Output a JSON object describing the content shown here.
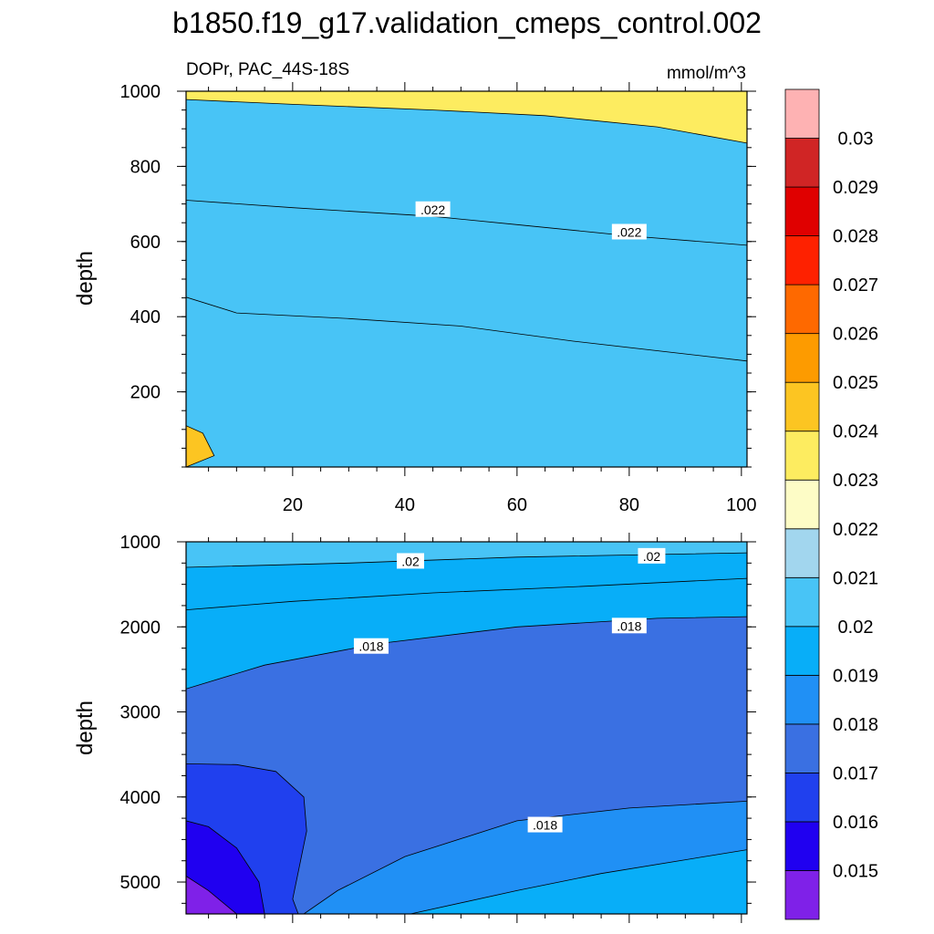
{
  "title": "b1850.f19_g17.validation_cmeps_control.002",
  "chart_data": [
    {
      "type": "contour",
      "panel": "upper",
      "left_label": "DOPr, PAC_44S-18S",
      "right_label": "mmol/m^3",
      "xlabel": "",
      "ylabel": "depth",
      "xlim": [
        1,
        101
      ],
      "ylim": [
        1000,
        0
      ],
      "x_ticks": [
        20,
        40,
        60,
        80,
        100
      ],
      "y_ticks": [
        200,
        400,
        600,
        800,
        1000
      ],
      "boundaries": [
        {
          "level": 0.024,
          "label": "",
          "pts": [
            [
              1,
              0
            ],
            [
              6,
              30
            ],
            [
              4,
              90
            ],
            [
              1,
              110
            ]
          ]
        },
        {
          "level": 0.023,
          "label": "",
          "pts": [
            [
              1,
              452
            ],
            [
              10,
              410
            ],
            [
              30,
              395
            ],
            [
              50,
              375
            ],
            [
              70,
              335
            ],
            [
              101,
              282
            ]
          ]
        },
        {
          "level": 0.022,
          "label": ".022",
          "pts": [
            [
              1,
              710
            ],
            [
              20,
              690
            ],
            [
              45,
              667
            ],
            [
              60,
              645
            ],
            [
              80,
              615
            ],
            [
              101,
              590
            ]
          ]
        },
        {
          "level": 0.021,
          "label": "",
          "pts": [
            [
              1,
              978
            ],
            [
              20,
              965
            ],
            [
              45,
              950
            ],
            [
              65,
              935
            ],
            [
              85,
              905
            ],
            [
              101,
              862
            ]
          ]
        }
      ],
      "contour_labels": [
        {
          "text": ".022",
          "x": 45,
          "y": 685
        },
        {
          "text": ".022",
          "x": 80,
          "y": 625
        }
      ]
    },
    {
      "type": "contour",
      "panel": "lower",
      "xlabel": "",
      "ylabel": "depth",
      "xlim": [
        1,
        101
      ],
      "ylim": [
        1000,
        5375
      ],
      "x_ticks": [
        20,
        40,
        60,
        80,
        100
      ],
      "y_ticks": [
        1000,
        2000,
        3000,
        4000,
        5000
      ],
      "boundaries": [
        {
          "level": 0.02,
          "label": ".02",
          "pts": [
            [
              1,
              1300
            ],
            [
              30,
              1250
            ],
            [
              60,
              1180
            ],
            [
              101,
              1130
            ]
          ]
        },
        {
          "level": 0.019,
          "label": "",
          "pts": [
            [
              1,
              1800
            ],
            [
              20,
              1700
            ],
            [
              45,
              1600
            ],
            [
              70,
              1530
            ],
            [
              101,
              1430
            ]
          ]
        },
        {
          "level": 0.018,
          "label": ".018",
          "pts": [
            [
              1,
              2730
            ],
            [
              15,
              2450
            ],
            [
              35,
              2200
            ],
            [
              60,
              2000
            ],
            [
              85,
              1900
            ],
            [
              101,
              1880
            ]
          ]
        },
        {
          "level": 0.017,
          "label": "",
          "pts": [
            [
              1,
              3610
            ],
            [
              10,
              3620
            ],
            [
              17,
              3700
            ],
            [
              22,
              4000
            ],
            [
              22.5,
              4400
            ],
            [
              20,
              5200
            ],
            [
              21,
              5375
            ]
          ]
        },
        {
          "level": 0.016,
          "label": "",
          "pts": [
            [
              1,
              4280
            ],
            [
              5,
              4350
            ],
            [
              10,
              4600
            ],
            [
              14,
              5000
            ],
            [
              15,
              5375
            ]
          ]
        },
        {
          "level": 0.015,
          "label": "",
          "pts": [
            [
              1,
              4930
            ],
            [
              5,
              5100
            ],
            [
              10,
              5375
            ]
          ]
        },
        {
          "level": 0.018,
          "label": ".018",
          "pts": [
            [
              22,
              5375
            ],
            [
              28,
              5100
            ],
            [
              40,
              4700
            ],
            [
              60,
              4280
            ],
            [
              80,
              4130
            ],
            [
              101,
              4050
            ]
          ]
        },
        {
          "level": 0.019,
          "label": "",
          "pts": [
            [
              41,
              5375
            ],
            [
              60,
              5100
            ],
            [
              75,
              4900
            ],
            [
              101,
              4620
            ]
          ]
        }
      ],
      "contour_labels": [
        {
          "text": ".02",
          "x": 41,
          "y": 1230
        },
        {
          "text": ".02",
          "x": 84,
          "y": 1170
        },
        {
          "text": ".018",
          "x": 34,
          "y": 2230
        },
        {
          "text": ".018",
          "x": 80,
          "y": 1990
        },
        {
          "text": ".018",
          "x": 65,
          "y": 4330
        }
      ]
    }
  ],
  "colorbar": {
    "levels": [
      "0.015",
      "0.016",
      "0.017",
      "0.018",
      "0.019",
      "0.02",
      "0.021",
      "0.022",
      "0.023",
      "0.024",
      "0.025",
      "0.026",
      "0.027",
      "0.028",
      "0.029",
      "0.03"
    ],
    "colors": [
      "#7f21e8",
      "#2000f0",
      "#2040ee",
      "#3a70e2",
      "#2090f5",
      "#08aef8",
      "#48c4f6",
      "#a2d6ee",
      "#fdfcc6",
      "#fdec60",
      "#fcc522",
      "#fd9b00",
      "#fe6900",
      "#fe2100",
      "#e00000",
      "#d02525",
      "#feb2b3"
    ]
  }
}
